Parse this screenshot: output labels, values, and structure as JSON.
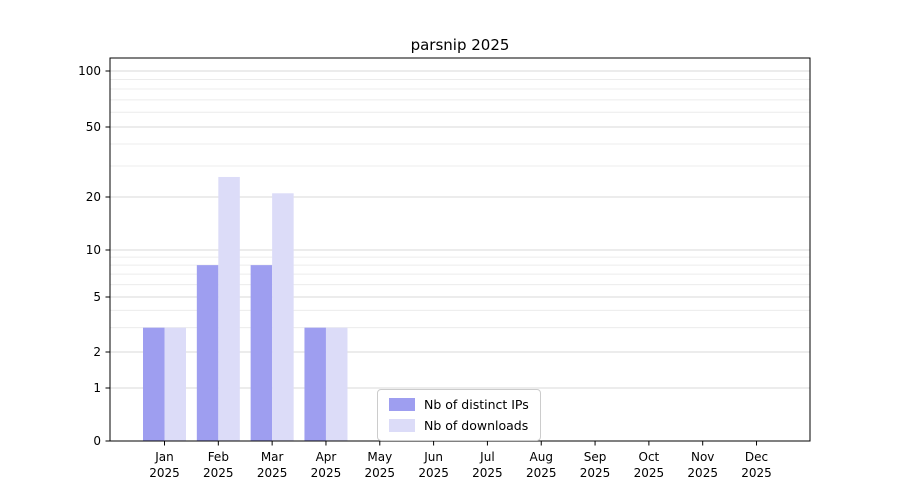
{
  "chart_data": {
    "type": "bar",
    "title": "parsnip 2025",
    "scale": "symlog",
    "categories": [
      "Jan 2025",
      "Feb 2025",
      "Mar 2025",
      "Apr 2025",
      "May 2025",
      "Jun 2025",
      "Jul 2025",
      "Aug 2025",
      "Sep 2025",
      "Oct 2025",
      "Nov 2025",
      "Dec 2025"
    ],
    "series": [
      {
        "name": "Nb of distinct IPs",
        "color": "#9e9ef0",
        "values": [
          3,
          8,
          8,
          3,
          0,
          0,
          0,
          0,
          0,
          0,
          0,
          0
        ]
      },
      {
        "name": "Nb of downloads",
        "color": "#dcdcf8",
        "values": [
          3,
          26,
          21,
          3,
          0,
          0,
          0,
          0,
          0,
          0,
          0,
          0
        ]
      }
    ],
    "y_ticks": [
      0,
      1,
      2,
      5,
      10,
      20,
      50,
      100
    ],
    "ylim": [
      0,
      100
    ],
    "grid": true,
    "legend": {
      "position": "lower center inside"
    },
    "colors": {
      "grid_major": "#d9d9d9",
      "grid_minor": "#ececec",
      "spine": "#000000",
      "background": "#ffffff"
    }
  }
}
